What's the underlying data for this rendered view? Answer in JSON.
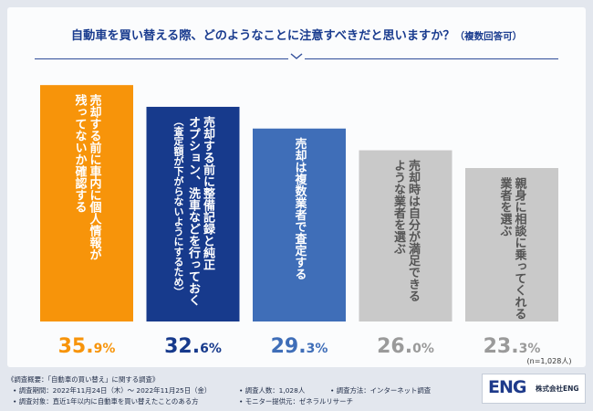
{
  "chart_data": {
    "type": "bar",
    "title": "自動車を買い替える際、どのようなことに注意すべきだと思いますか？",
    "title_note": "（複数回答可）",
    "categories": [
      [
        "売却する前に車内に個人情報が",
        "残ってないか確認する"
      ],
      [
        "売却する前に整備記録と純正",
        "オプション、洗車などを行っておく",
        "（査定額が下がらないようにするため）"
      ],
      [
        "売却は複数業者で査定する"
      ],
      [
        "売却時は自分が満足できる",
        "ような業者を選ぶ"
      ],
      [
        "親身に相談に乗ってくれる",
        "業者を選ぶ"
      ]
    ],
    "values": [
      35.9,
      32.6,
      29.3,
      26.0,
      23.3
    ],
    "value_labels": [
      {
        "main": "35.",
        "small": "9%"
      },
      {
        "main": "32.",
        "small": "6%"
      },
      {
        "main": "29.",
        "small": "3%"
      },
      {
        "main": "26.",
        "small": "0%"
      },
      {
        "main": "23.",
        "small": "3%"
      }
    ],
    "colors": [
      "#f7940a",
      "#173a8c",
      "#3f6eb8",
      "#c9c9c9",
      "#c9c9c9"
    ],
    "label_colors": [
      "#f7940a",
      "#173a8c",
      "#3f6eb8",
      "#9a9a9a",
      "#9a9a9a"
    ],
    "text_colors": [
      "#ffffff",
      "#ffffff",
      "#ffffff",
      "#555555",
      "#555555"
    ],
    "ylim": [
      0,
      40
    ],
    "sample_note": "(n=1,028人)"
  },
  "footer": {
    "survey_title": "《調査概要：「自動車の買い替え」に関する調査》",
    "period": "• 調査期間：2022年11月24日（木）～ 2022年11月25日（金）",
    "people": "• 調査人数：1,028人",
    "method": "• 調査方法：インターネット調査",
    "target": "• 調査対象：直近1年以内に自動車を買い替えたことのある方",
    "provider": "• モニター提供元：ゼネラルリサーチ"
  },
  "logo": {
    "mark": "ENG",
    "company": "株式会社ENG"
  }
}
